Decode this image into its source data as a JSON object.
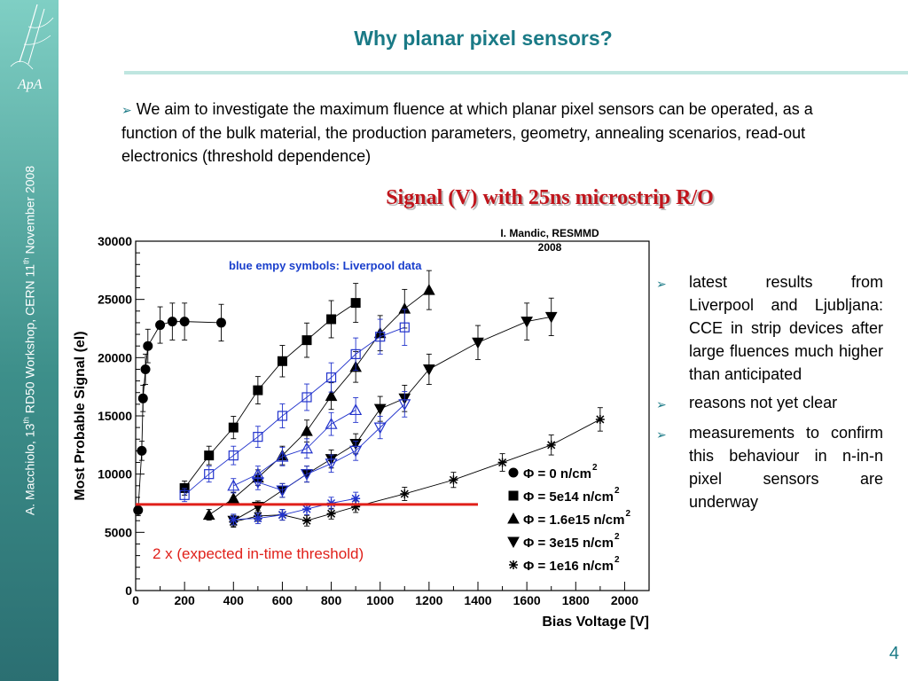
{
  "sidebar": {
    "logo_text": "ApA",
    "author_prefix": "A. Macchiolo, 13",
    "author_sup": "th",
    "author_middle": " RD50 Workshop, CERN 11",
    "author_sup2": "th",
    "author_suffix": " November 2008"
  },
  "slide": {
    "title": "Why planar pixel sensors?",
    "intro": "We aim to investigate  the maximum fluence at which  planar pixel sensors can be operated, as a function of the bulk material, the production parameters, geometry, annealing scenarios, read-out electronics (threshold dependence)",
    "chart_heading": "Signal (V) with 25ns microstrip R/O",
    "page_number": "4",
    "bullets": [
      "latest results from Liverpool and Ljubljana: CCE in strip devices after large fluences much higher than anticipated",
      "reasons not yet clear",
      "measurements to confirm this behaviour in n-in-n pixel sensors are underway"
    ]
  },
  "colors": {
    "accent": "#1a7a86",
    "threshold": "#e0201a",
    "liverpool": "#2233cc",
    "heading": "#c0141b"
  },
  "chart_data": {
    "type": "scatter",
    "xlabel": "Bias Voltage [V]",
    "ylabel": "Most Probable Signal (el)",
    "xlim": [
      0,
      2100
    ],
    "ylim": [
      0,
      30000
    ],
    "x_ticks": [
      "0",
      "200",
      "400",
      "600",
      "800",
      "1000",
      "1200",
      "1400",
      "1600",
      "1800",
      "2000"
    ],
    "y_ticks": [
      "0",
      "5000",
      "10000",
      "15000",
      "20000",
      "25000",
      "30000"
    ],
    "credit_line1": "I. Mandic, RESMMD",
    "credit_line2": "2008",
    "liverpool_note": "blue empy symbols: Liverpool data",
    "threshold_label": "2 x (expected in-time threshold)",
    "threshold_value": 7400,
    "threshold_range": [
      0,
      1400
    ],
    "series": [
      {
        "name": "Φ = 0 n/cm",
        "sup": "2",
        "marker": "circle",
        "filled": true,
        "color": "#000000",
        "x": [
          10,
          25,
          30,
          40,
          50,
          100,
          150,
          200,
          350
        ],
        "y": [
          6900,
          12000,
          16500,
          19000,
          21000,
          22800,
          23100,
          23100,
          23000
        ]
      },
      {
        "name": "Φ = 5e14 n/cm",
        "sup": "2",
        "marker": "square",
        "filled": true,
        "color": "#000000",
        "x": [
          200,
          300,
          400,
          500,
          600,
          700,
          800,
          900
        ],
        "y": [
          8800,
          11600,
          14000,
          17200,
          19700,
          21500,
          23300,
          24700
        ]
      },
      {
        "name": "Φ = 1.6e15 n/cm",
        "sup": "2",
        "marker": "triangle-up",
        "filled": true,
        "color": "#000000",
        "x": [
          300,
          400,
          500,
          600,
          700,
          800,
          900,
          1000,
          1100,
          1200
        ],
        "y": [
          6500,
          7900,
          9700,
          11600,
          13700,
          16700,
          19200,
          22100,
          24200,
          25800
        ]
      },
      {
        "name": "Φ = 3e15 n/cm",
        "sup": "2",
        "marker": "triangle-down",
        "filled": true,
        "color": "#000000",
        "x": [
          400,
          500,
          600,
          700,
          800,
          900,
          1000,
          1100,
          1200,
          1400,
          1600,
          1700
        ],
        "y": [
          6000,
          7200,
          8600,
          10000,
          11300,
          12600,
          15600,
          16500,
          19000,
          21300,
          23100,
          23500
        ]
      },
      {
        "name": "Φ = 1e16 n/cm",
        "sup": "2",
        "marker": "star",
        "filled": true,
        "color": "#000000",
        "x": [
          400,
          500,
          600,
          700,
          800,
          900,
          1100,
          1300,
          1500,
          1700,
          1900
        ],
        "y": [
          5900,
          6400,
          6500,
          6000,
          6600,
          7200,
          8300,
          9500,
          11000,
          12500,
          14700
        ]
      },
      {
        "marker": "square",
        "filled": false,
        "color": "#2233cc",
        "x": [
          200,
          300,
          400,
          500,
          600,
          700,
          800,
          900,
          1000,
          1100
        ],
        "y": [
          8200,
          10000,
          11600,
          13200,
          15000,
          16600,
          18300,
          20300,
          21800,
          22600
        ]
      },
      {
        "marker": "triangle-up",
        "filled": false,
        "color": "#2233cc",
        "x": [
          400,
          500,
          600,
          700,
          800,
          900
        ],
        "y": [
          9000,
          10000,
          11500,
          12200,
          14300,
          15500
        ]
      },
      {
        "marker": "triangle-down",
        "filled": false,
        "color": "#2233cc",
        "x": [
          500,
          600,
          700,
          800,
          900,
          1000,
          1100
        ],
        "y": [
          9300,
          8600,
          10000,
          10900,
          12000,
          14000,
          16000
        ]
      },
      {
        "marker": "star",
        "filled": false,
        "color": "#2233cc",
        "x": [
          400,
          500,
          600,
          700,
          800,
          900
        ],
        "y": [
          6100,
          6200,
          6500,
          7000,
          7500,
          7900
        ]
      }
    ]
  }
}
